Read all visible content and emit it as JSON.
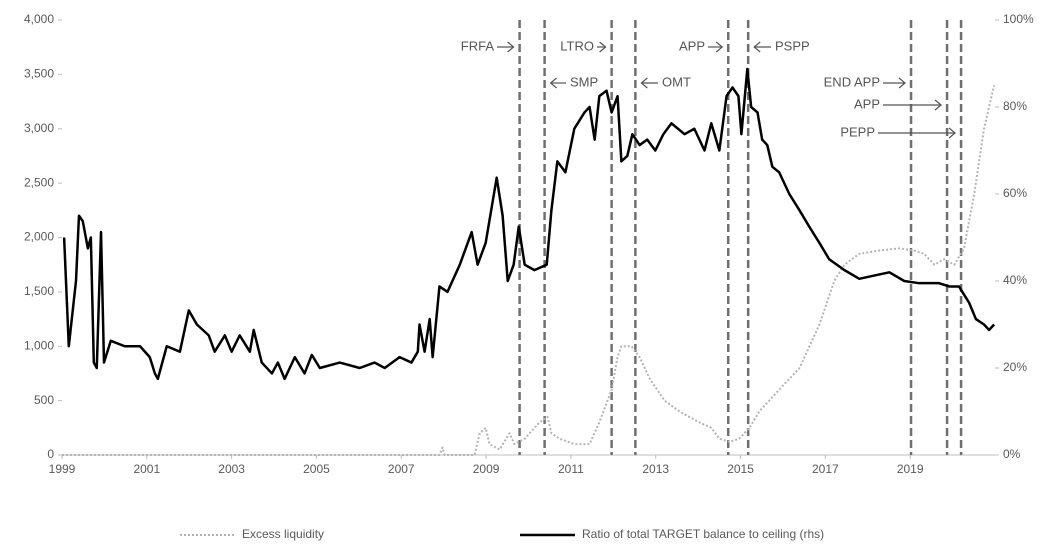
{
  "chart_data": {
    "type": "line",
    "xlim": [
      1999,
      2021
    ],
    "xticks": [
      1999,
      2001,
      2003,
      2005,
      2007,
      2009,
      2011,
      2013,
      2015,
      2017,
      2019
    ],
    "ylim": [
      0,
      4000
    ],
    "yticks": [
      0,
      500,
      {
        "value": 1000,
        "label": "1,000"
      },
      {
        "value": 1500,
        "label": "1,500"
      },
      {
        "value": 2000,
        "label": "2,000"
      },
      {
        "value": 2500,
        "label": "2,500"
      },
      {
        "value": 3000,
        "label": "3,000"
      },
      {
        "value": 3500,
        "label": "3,500"
      },
      {
        "value": 4000,
        "label": "4,000"
      }
    ],
    "y2lim": [
      0,
      100
    ],
    "y2ticks": [
      {
        "value": 0,
        "label": "0%"
      },
      {
        "value": 20,
        "label": "20%"
      },
      {
        "value": 40,
        "label": "40%"
      },
      {
        "value": 60,
        "label": "60%"
      },
      {
        "value": 80,
        "label": "80%"
      },
      {
        "value": 100,
        "label": "100%"
      }
    ],
    "grid": false,
    "series": [
      {
        "name": "Excess liquidity",
        "color": "#b4b4b4",
        "dash": "dotted",
        "x": [
          1999.0,
          2007.9,
          2007.97,
          2008.02,
          2008.73,
          2008.85,
          2008.99,
          2009.08,
          2009.32,
          2009.55,
          2009.67,
          2009.91,
          2010.26,
          2010.45,
          2010.54,
          2010.73,
          2011.08,
          2011.44,
          2011.67,
          2011.96,
          2012.1,
          2012.19,
          2012.43,
          2012.62,
          2012.86,
          2013.21,
          2013.56,
          2014.03,
          2014.31,
          2014.5,
          2014.74,
          2014.97,
          2015.21,
          2015.44,
          2015.91,
          2016.39,
          2016.86,
          2017.21,
          2017.45,
          2017.8,
          2018.27,
          2018.74,
          2019.09,
          2019.33,
          2019.57,
          2019.8,
          2020.04,
          2020.27,
          2020.51,
          2020.74,
          2020.98
        ],
        "values": [
          0,
          0,
          70,
          0,
          0,
          200,
          250,
          100,
          50,
          200,
          100,
          150,
          300,
          350,
          200,
          150,
          100,
          100,
          300,
          600,
          900,
          1000,
          1000,
          900,
          700,
          500,
          400,
          300,
          250,
          150,
          120,
          150,
          250,
          400,
          600,
          800,
          1200,
          1600,
          1750,
          1850,
          1880,
          1900,
          1880,
          1850,
          1750,
          1800,
          1750,
          1900,
          2400,
          3000,
          3400
        ]
      },
      {
        "name": "Ratio of total TARGET balance to ceiling (rhs)",
        "color": "#000000",
        "dash": "solid",
        "axis": "y2",
        "x": [
          1999.05,
          1999.16,
          1999.33,
          1999.4,
          1999.49,
          1999.61,
          1999.68,
          1999.75,
          1999.82,
          1999.92,
          1999.99,
          2000.15,
          2000.48,
          2000.84,
          2001.07,
          2001.19,
          2001.26,
          2001.47,
          2001.78,
          2001.99,
          2002.18,
          2002.46,
          2002.6,
          2002.84,
          2003.0,
          2003.19,
          2003.43,
          2003.52,
          2003.71,
          2003.95,
          2004.09,
          2004.25,
          2004.49,
          2004.72,
          2004.89,
          2005.08,
          2005.55,
          2006.02,
          2006.37,
          2006.61,
          2006.96,
          2007.24,
          2007.39,
          2007.43,
          2007.55,
          2007.67,
          2007.74,
          2007.9,
          2008.09,
          2008.38,
          2008.66,
          2008.8,
          2008.99,
          2009.25,
          2009.39,
          2009.51,
          2009.65,
          2009.77,
          2009.91,
          2010.14,
          2010.43,
          2010.54,
          2010.68,
          2010.87,
          2011.08,
          2011.32,
          2011.44,
          2011.56,
          2011.67,
          2011.84,
          2011.96,
          2012.1,
          2012.19,
          2012.33,
          2012.45,
          2012.62,
          2012.8,
          2012.99,
          2013.18,
          2013.37,
          2013.68,
          2013.91,
          2014.15,
          2014.31,
          2014.5,
          2014.67,
          2014.81,
          2014.95,
          2015.02,
          2015.16,
          2015.25,
          2015.4,
          2015.51,
          2015.63,
          2015.75,
          2015.91,
          2016.15,
          2016.39,
          2016.62,
          2016.86,
          2017.09,
          2017.45,
          2017.8,
          2018.15,
          2018.51,
          2018.86,
          2019.21,
          2019.68,
          2019.92,
          2020.15,
          2020.39,
          2020.55,
          2020.74,
          2020.86,
          2020.98
        ],
        "values": [
          50,
          25,
          40,
          55,
          53.75,
          47.5,
          50,
          21.25,
          20,
          51.25,
          21.25,
          26.25,
          25,
          25,
          22.5,
          18.75,
          17.5,
          25,
          23.75,
          33.25,
          30,
          27.5,
          23.75,
          27.5,
          23.75,
          27.5,
          23.75,
          28.75,
          21.25,
          18.75,
          21.25,
          17.5,
          22.5,
          18.75,
          23,
          20,
          21.25,
          20,
          21.25,
          20,
          22.5,
          21.25,
          23.75,
          30,
          23.75,
          31.25,
          22.5,
          38.75,
          37.5,
          43.75,
          51.25,
          43.75,
          48.75,
          63.75,
          55,
          40,
          43.75,
          52.5,
          43.75,
          42.5,
          43.75,
          56.25,
          67.5,
          65,
          75,
          78.75,
          80,
          72.5,
          82.5,
          83.75,
          78.75,
          82.5,
          67.5,
          68.75,
          73.75,
          71.25,
          72.5,
          70,
          73.75,
          76.25,
          73.75,
          75,
          70,
          76.25,
          70,
          82.5,
          84.5,
          82.5,
          73.75,
          88.75,
          80,
          78.75,
          72.5,
          71.25,
          66.25,
          65,
          60,
          56.25,
          52.5,
          48.75,
          45,
          42.5,
          40.5,
          41.25,
          42,
          40,
          39.5,
          39.5,
          38.75,
          38.75,
          35,
          31.25,
          30,
          28.75,
          30
        ]
      }
    ],
    "events": [
      {
        "label": "FRFA",
        "x": 2009.79
      },
      {
        "label": "SMP",
        "x": 2010.38
      },
      {
        "label": "LTRO",
        "x": 2011.96
      },
      {
        "label": "OMT",
        "x": 2012.52
      },
      {
        "label": "APP",
        "x": 2014.71
      },
      {
        "label": "PSPP",
        "x": 2015.18
      },
      {
        "label": "END APP",
        "x": 2019.02
      },
      {
        "label": "APP",
        "x": 2019.87
      },
      {
        "label": "PEPP",
        "x": 2020.2
      }
    ]
  }
}
